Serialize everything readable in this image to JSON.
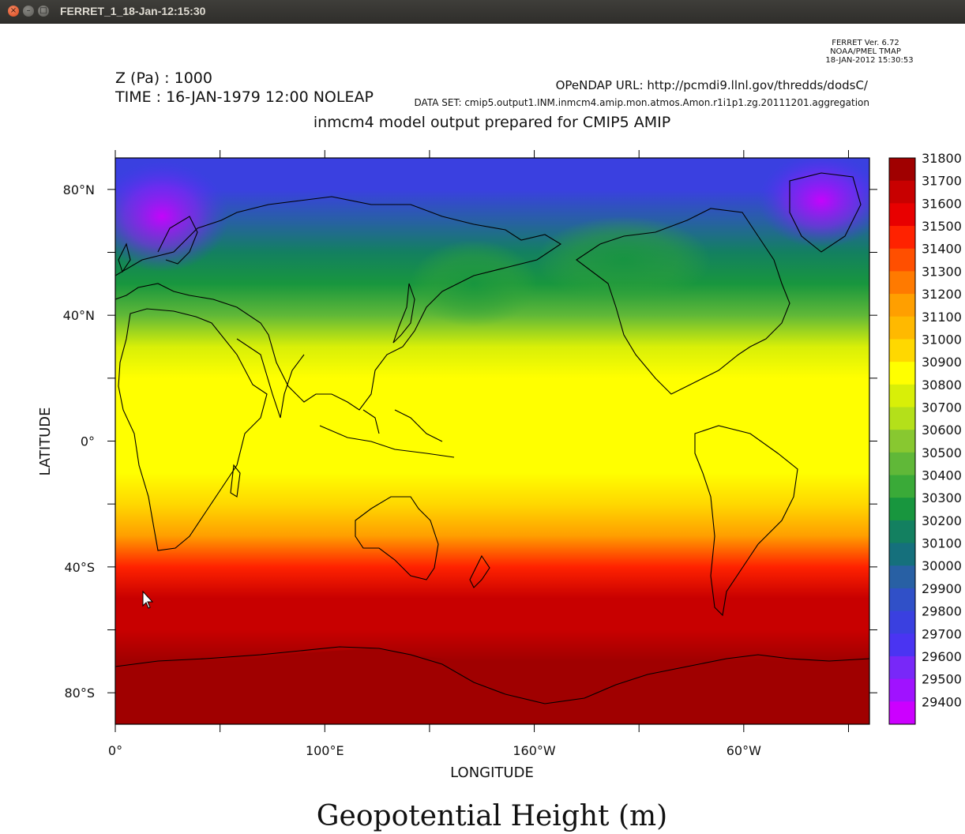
{
  "window": {
    "title": "FERRET_1_18-Jan-12:15:30",
    "buttons": {
      "close": "×",
      "minimize": "–",
      "maximize": "□"
    }
  },
  "header": {
    "ferret_version": "FERRET Ver. 6.72",
    "lab": "NOAA/PMEL TMAP",
    "timestamp": "18-JAN-2012 15:30:53",
    "z_label": "Z (Pa) : 1000",
    "time_label": "TIME : 16-JAN-1979 12:00 NOLEAP",
    "opendap_url": "OPeNDAP URL: http://pcmdi9.llnl.gov/thredds/dodsC/",
    "dataset": "DATA SET: cmip5.output1.INM.inmcm4.amip.mon.atmos.Amon.r1i1p1.zg.20111201.aggregation",
    "subtitle": "inmcm4 model output prepared for CMIP5 AMIP"
  },
  "chart_data": {
    "type": "heatmap",
    "title": "Geopotential Height (m)",
    "xlabel": "LONGITUDE",
    "ylabel": "LATITUDE",
    "x_tick_labels": [
      "0°",
      "100°E",
      "160°W",
      "60°W"
    ],
    "y_tick_labels": [
      "80°N",
      "40°N",
      "0°",
      "40°S",
      "80°S"
    ],
    "x_range_deg_east": [
      0,
      360
    ],
    "y_range_deg": [
      -90,
      90
    ],
    "colorbar": {
      "levels": [
        31800,
        31700,
        31600,
        31500,
        31400,
        31300,
        31200,
        31100,
        31000,
        30900,
        30800,
        30700,
        30600,
        30500,
        30400,
        30300,
        30200,
        30100,
        30000,
        29900,
        29800,
        29700,
        29600,
        29500,
        29400
      ],
      "colors": [
        "#a00000",
        "#c80000",
        "#e80000",
        "#ff2200",
        "#ff4f00",
        "#ff7a00",
        "#ff9f00",
        "#ffb900",
        "#ffd800",
        "#ffff00",
        "#d8ef08",
        "#b4e01a",
        "#88c830",
        "#60b838",
        "#3aaa38",
        "#18963e",
        "#138060",
        "#15707c",
        "#2860a4",
        "#3050c8",
        "#3a40e0",
        "#4a34f2",
        "#7828f8",
        "#a012ff",
        "#cc00ff"
      ]
    },
    "zonal_field": {
      "lat_deg": [
        90,
        80,
        70,
        60,
        50,
        40,
        30,
        20,
        10,
        0,
        -10,
        -20,
        -30,
        -40,
        -50,
        -60,
        -70,
        -80,
        -90
      ],
      "height_m": [
        29750,
        29800,
        29950,
        30150,
        30300,
        30420,
        30720,
        30850,
        30870,
        30870,
        30870,
        30950,
        31150,
        31450,
        31620,
        31680,
        31720,
        31760,
        31800
      ]
    }
  }
}
